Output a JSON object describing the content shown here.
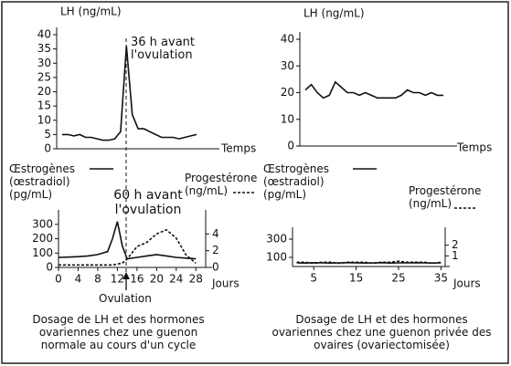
{
  "chart_data": [
    {
      "type": "line",
      "title": "LH (ng/mL)",
      "xlabel": "Temps",
      "ylim": [
        0,
        40
      ],
      "yticks": [
        0,
        5,
        10,
        15,
        20,
        25,
        30,
        35,
        40
      ],
      "series": [
        {
          "color": "#111111",
          "values": [
            5,
            5,
            4.5,
            5,
            4,
            4,
            3.5,
            3,
            3,
            3.5,
            6,
            36,
            12,
            7,
            7,
            6,
            5,
            4,
            4,
            4,
            3.5,
            4,
            4.5,
            5
          ]
        }
      ],
      "annotations": [
        "36 h avant l'ovulation"
      ]
    },
    {
      "type": "line",
      "title": "LH (ng/mL)",
      "xlabel": "Temps",
      "ylim": [
        0,
        40
      ],
      "yticks": [
        0,
        10,
        20,
        30,
        40
      ],
      "series": [
        {
          "color": "#111111",
          "values": [
            21,
            23,
            20,
            18,
            19,
            24,
            22,
            20,
            20,
            19,
            20,
            19,
            18,
            18,
            18,
            18,
            19,
            21,
            20,
            20,
            19,
            20,
            19,
            19
          ]
        }
      ]
    },
    {
      "type": "line",
      "xlabel": "Jours",
      "x": [
        0,
        2,
        4,
        6,
        8,
        10,
        11,
        12,
        13,
        14,
        16,
        18,
        20,
        22,
        24,
        26,
        28
      ],
      "xlim": [
        0,
        30
      ],
      "xticks": [
        0,
        4,
        8,
        12,
        16,
        20,
        24,
        28
      ],
      "ylim": [
        0,
        350
      ],
      "yticks": [
        0,
        100,
        200,
        300
      ],
      "y2lim": [
        0,
        6
      ],
      "y2ticks": [
        0,
        2,
        4
      ],
      "series": [
        {
          "name": "Œstrogènes (œstradiol) (pg/mL)",
          "color": "#111111",
          "values": [
            70,
            72,
            75,
            80,
            90,
            110,
            200,
            320,
            150,
            60,
            70,
            80,
            90,
            80,
            70,
            65,
            60
          ]
        },
        {
          "name": "Progestérone (ng/mL)",
          "color": "#111111",
          "dashed": true,
          "axis": "y2",
          "values": [
            0.3,
            0.3,
            0.3,
            0.3,
            0.3,
            0.3,
            0.3,
            0.4,
            0.5,
            1,
            2.5,
            3,
            4,
            4.5,
            3.5,
            1.5,
            0.5
          ]
        }
      ],
      "annotations": [
        "60 h avant l'ovulation",
        "Ovulation"
      ],
      "caption": "Dosage de LH et des hormones ovariennes chez une guenon normale au cours d'un cycle"
    },
    {
      "type": "line",
      "xlabel": "Jours",
      "x": [
        1,
        3,
        5,
        7,
        9,
        11,
        13,
        15,
        17,
        19,
        21,
        23,
        25,
        27,
        29,
        31,
        33,
        35
      ],
      "xlim": [
        0,
        36
      ],
      "xticks": [
        5,
        15,
        25,
        35
      ],
      "ylim": [
        0,
        350
      ],
      "yticks": [
        100,
        300
      ],
      "y2lim": [
        0,
        3
      ],
      "y2ticks": [
        1,
        2
      ],
      "series": [
        {
          "name": "Œstrogènes (œstradiol) (pg/mL)",
          "color": "#111111",
          "values": [
            40,
            38,
            42,
            40,
            38,
            40,
            42,
            40,
            38,
            40,
            42,
            38,
            40,
            40,
            42,
            40,
            38,
            40
          ]
        },
        {
          "name": "Progestérone (ng/mL)",
          "color": "#111111",
          "dashed": true,
          "axis": "y2",
          "values": [
            0.4,
            0.4,
            0.3,
            0.4,
            0.4,
            0.3,
            0.4,
            0.4,
            0.4,
            0.3,
            0.4,
            0.4,
            0.5,
            0.4,
            0.4,
            0.4,
            0.3,
            0.4
          ]
        }
      ],
      "caption": "Dosage de LH et des hormones ovariennes chez une guenon privée des ovaires (ovariectomisée)"
    }
  ]
}
